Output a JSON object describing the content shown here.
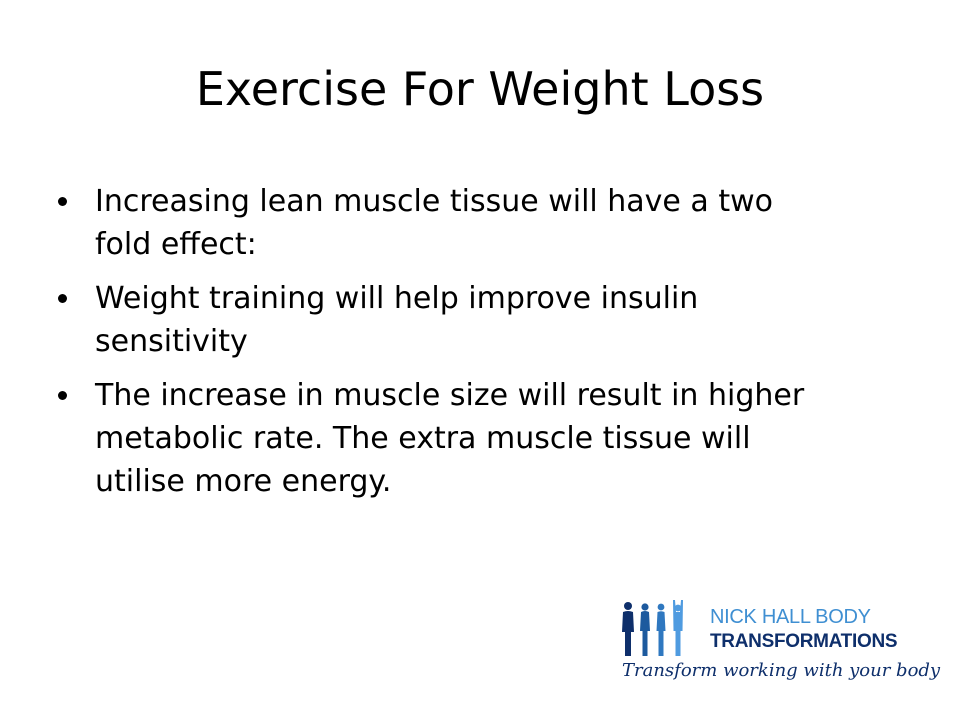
{
  "slide": {
    "title": "Exercise For Weight Loss",
    "bullets": [
      {
        "line1": "Increasing lean muscle tissue will have a two",
        "line2": "fold effect:"
      },
      {
        "line1": "Weight training will help improve insulin",
        "line2": "sensitivity"
      },
      {
        "line1": "The increase in muscle size will result in higher",
        "line2": "metabolic rate.  The extra muscle tissue will",
        "line3": "utilise more energy."
      }
    ]
  },
  "logo": {
    "line1": "NICK HALL BODY",
    "line2": "TRANSFORMATIONS",
    "tagline": "Transform working with your body",
    "colors": {
      "light_blue": "#3f8fd2",
      "dark_blue": "#0e2f6b"
    }
  }
}
